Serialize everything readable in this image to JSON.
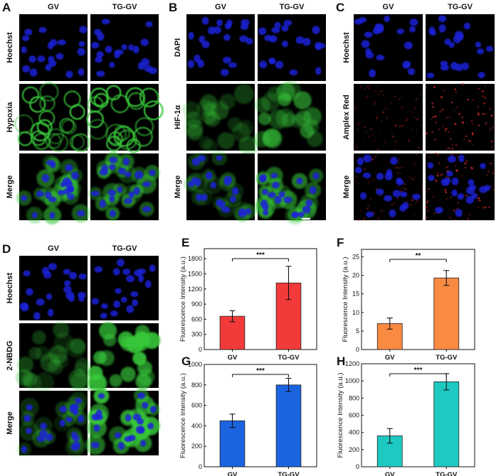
{
  "micrographs": [
    {
      "panel": "A",
      "cols": [
        "GV",
        "TG-GV"
      ],
      "rows": [
        "Hoechst",
        "Hypoxia",
        "Merge"
      ],
      "scale_bar": true
    },
    {
      "panel": "B",
      "cols": [
        "GV",
        "TG-GV"
      ],
      "rows": [
        "DAPI",
        "HIF-1α",
        "Merge"
      ],
      "scale_bar": true
    },
    {
      "panel": "C",
      "cols": [
        "GV",
        "TG-GV"
      ],
      "rows": [
        "Hoechst",
        "Amplex Red",
        "Merge"
      ],
      "scale_bar": false
    },
    {
      "panel": "D",
      "cols": [
        "GV",
        "TG-GV"
      ],
      "rows": [
        "Hoechst",
        "2-NBDG",
        "Merge"
      ],
      "scale_bar": true
    }
  ],
  "colors": {
    "nucleus": "#1a22d8",
    "green": "#39c83a",
    "red": "#c8282a",
    "background": "#000000",
    "bar_E": "#f23a3a",
    "bar_F": "#f98a42",
    "bar_G": "#1c63e0",
    "bar_H": "#1ec9c1"
  },
  "chart_data": [
    {
      "panel": "E",
      "type": "bar",
      "categories": [
        "GV",
        "TG-GV"
      ],
      "values": [
        660,
        1320
      ],
      "errors": [
        110,
        330
      ],
      "ylabel": "Fluorescence Intensity (a.u.)",
      "ylim": [
        0,
        2000
      ],
      "yticks": [
        0,
        300,
        600,
        900,
        1200,
        1500,
        1800
      ],
      "significance": "***",
      "color": "#f23a3a"
    },
    {
      "panel": "F",
      "type": "bar",
      "categories": [
        "GV",
        "TG-GV"
      ],
      "values": [
        7,
        19.3
      ],
      "errors": [
        1.5,
        2.0
      ],
      "ylabel": "Fluorescence Intensity (a.u.)",
      "ylim": [
        0,
        27
      ],
      "yticks": [
        0,
        5,
        10,
        15,
        20,
        25
      ],
      "significance": "**",
      "color": "#f98a42"
    },
    {
      "panel": "G",
      "type": "bar",
      "categories": [
        "GV",
        "TG-GV"
      ],
      "values": [
        450,
        800
      ],
      "errors": [
        65,
        65
      ],
      "ylabel": "Fluorescence Intensity (a.u.)",
      "ylim": [
        0,
        1000
      ],
      "yticks": [
        0,
        200,
        400,
        600,
        800,
        1000
      ],
      "significance": "***",
      "color": "#1c63e0"
    },
    {
      "panel": "H",
      "type": "bar",
      "categories": [
        "GV",
        "TG-GV"
      ],
      "values": [
        360,
        990
      ],
      "errors": [
        85,
        95
      ],
      "ylabel": "Fluorescence Intensity (a.u.)",
      "ylim": [
        0,
        1200
      ],
      "yticks": [
        0,
        200,
        400,
        600,
        800,
        1000,
        1200
      ],
      "significance": "***",
      "color": "#1ec9c1"
    }
  ]
}
